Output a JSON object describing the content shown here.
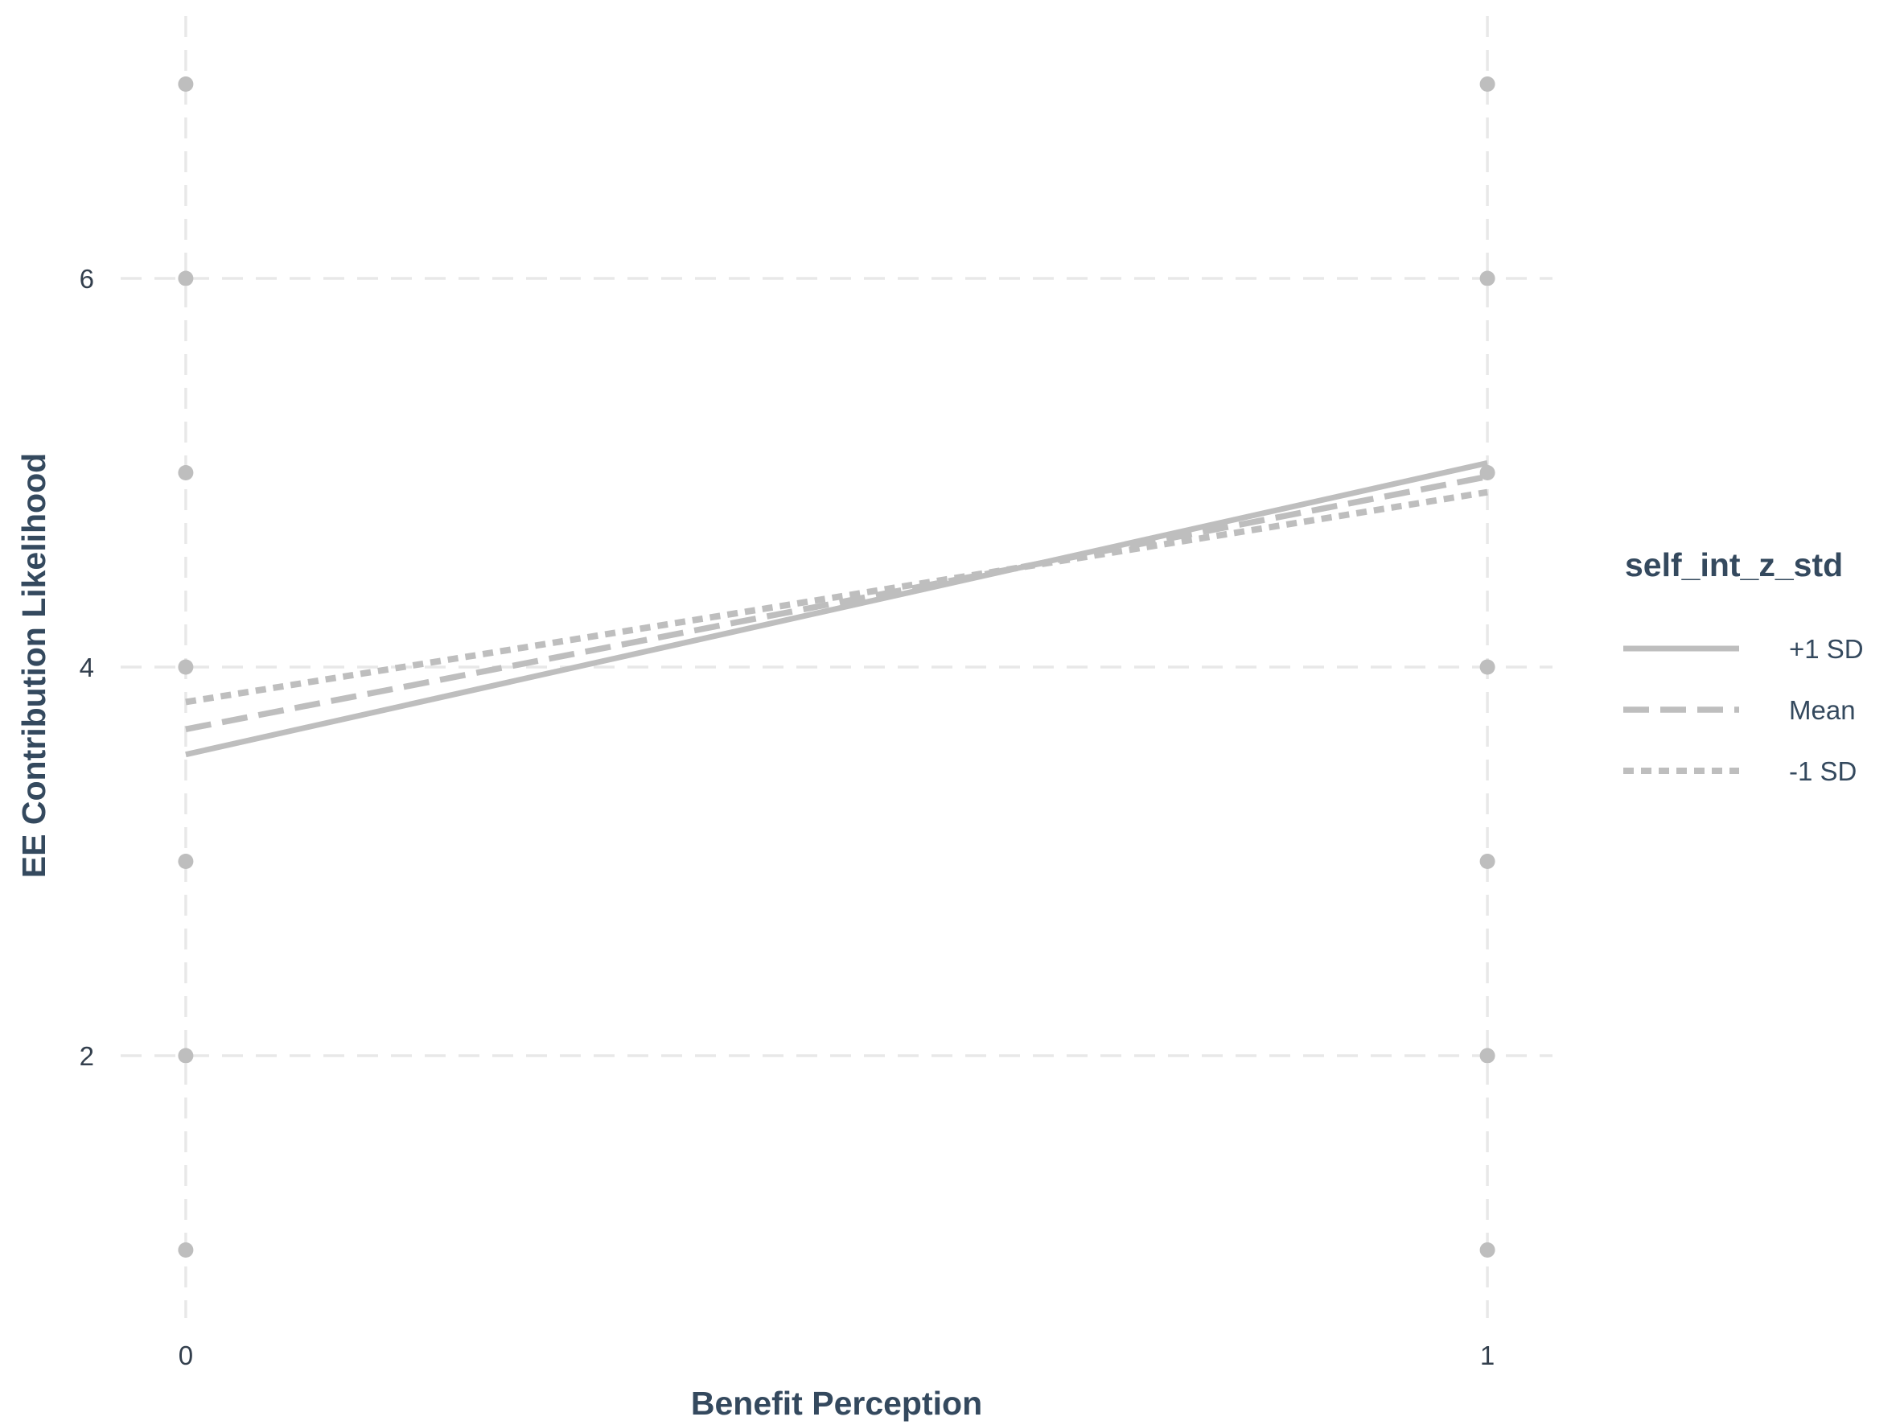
{
  "chart_data": {
    "type": "line",
    "xlabel": "Benefit Perception",
    "ylabel": "EE Contribution Likelihood",
    "x_ticks": [
      0,
      1
    ],
    "y_ticks": [
      2,
      4,
      6
    ],
    "xlim": [
      -0.05,
      1.05
    ],
    "ylim": [
      0.65,
      7.35
    ],
    "grid": true,
    "legend": {
      "title": "self_int_z_std",
      "position": "right"
    },
    "series": [
      {
        "name": "+1 SD",
        "style": "solid",
        "x": [
          0,
          1
        ],
        "y": [
          3.55,
          5.05
        ]
      },
      {
        "name": "Mean",
        "style": "dashed",
        "x": [
          0,
          1
        ],
        "y": [
          3.68,
          4.98
        ]
      },
      {
        "name": "-1 SD",
        "style": "dotted",
        "x": [
          0,
          1
        ],
        "y": [
          3.82,
          4.9
        ]
      }
    ],
    "points": {
      "x": [
        0,
        0,
        0,
        0,
        0,
        0,
        0,
        1,
        1,
        1,
        1,
        1,
        1,
        1
      ],
      "y": [
        1,
        2,
        3,
        4,
        5,
        6,
        7,
        1,
        2,
        3,
        4,
        5,
        6,
        7
      ]
    },
    "colors": {
      "lines": "#bebebe",
      "points": "#bebebe",
      "grid": "#e8e8e8",
      "text": "#34495e"
    }
  }
}
